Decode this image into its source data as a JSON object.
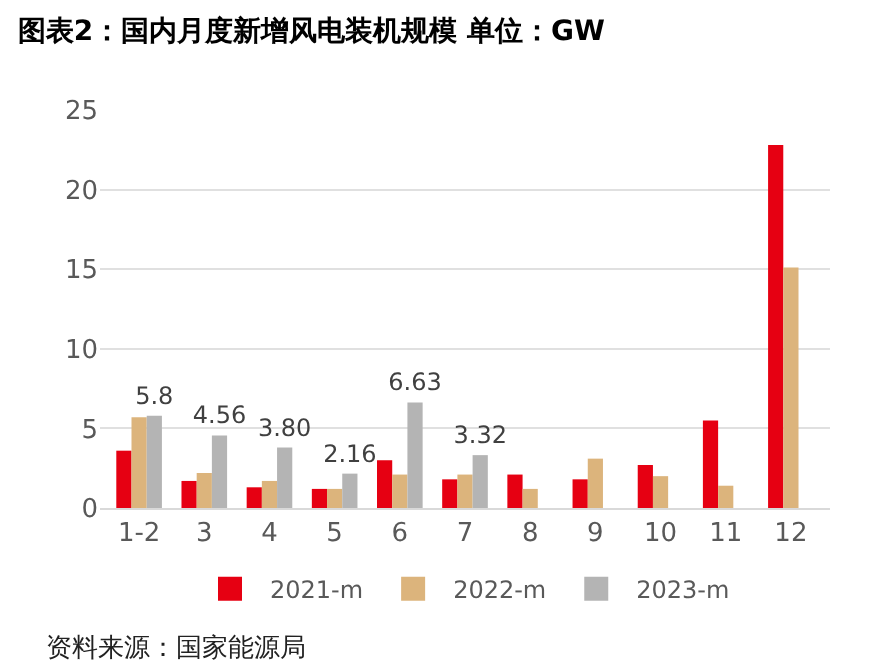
{
  "chart_data": {
    "type": "bar",
    "title": "图表2：国内月度新增风电装机规模 单位：GW",
    "categories": [
      "1-2",
      "3",
      "4",
      "5",
      "6",
      "7",
      "8",
      "9",
      "10",
      "11",
      "12"
    ],
    "series": [
      {
        "name": "2021-m",
        "color": "#e60012",
        "values": [
          3.6,
          1.7,
          1.3,
          1.2,
          3.0,
          1.8,
          2.1,
          1.8,
          2.7,
          5.5,
          22.8
        ]
      },
      {
        "name": "2022-m",
        "color": "#dcb47c",
        "values": [
          5.7,
          2.2,
          1.7,
          1.2,
          2.1,
          2.1,
          1.2,
          3.1,
          2.0,
          1.4,
          15.1
        ]
      },
      {
        "name": "2023-m",
        "color": "#b4b4b4",
        "values": [
          5.8,
          4.56,
          3.8,
          2.16,
          6.63,
          3.32,
          null,
          null,
          null,
          null,
          null
        ],
        "value_labels": [
          "5.8",
          "4.56",
          "3.80",
          "2.16",
          "6.63",
          "3.32",
          null,
          null,
          null,
          null,
          null
        ]
      }
    ],
    "ylim": [
      0,
      25
    ],
    "yticks": [
      0,
      5,
      10,
      15,
      20,
      25
    ],
    "grid": "y",
    "legend": "bottom",
    "annotations": [
      "资料来源：国家能源局"
    ]
  }
}
